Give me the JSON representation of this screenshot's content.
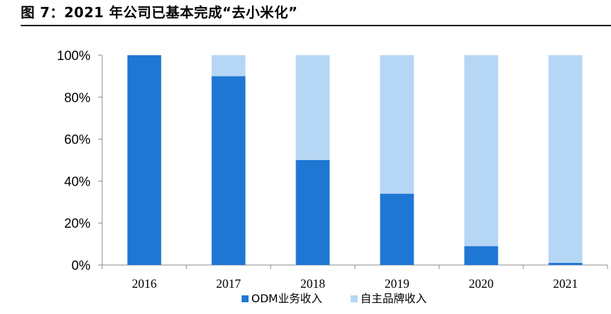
{
  "header": {
    "title": "图 7：2021 年公司已基本完成“去小米化”"
  },
  "colors": {
    "odm": "#1f77d4",
    "own_brand": "#b6d6f5",
    "axis": "#888888"
  },
  "chart_data": {
    "type": "bar",
    "stacked": true,
    "percent": true,
    "title": "",
    "xlabel": "",
    "ylabel": "",
    "ylim": [
      0,
      100
    ],
    "yticks": [
      "0%",
      "20%",
      "40%",
      "60%",
      "80%",
      "100%"
    ],
    "categories": [
      "2016",
      "2017",
      "2018",
      "2019",
      "2020",
      "2021"
    ],
    "series": [
      {
        "name": "ODM业务收入",
        "values": [
          100,
          90,
          50,
          34,
          9,
          1
        ]
      },
      {
        "name": "自主品牌收入",
        "values": [
          0,
          10,
          50,
          66,
          91,
          99
        ]
      }
    ],
    "legend_position": "bottom",
    "grid": false
  }
}
